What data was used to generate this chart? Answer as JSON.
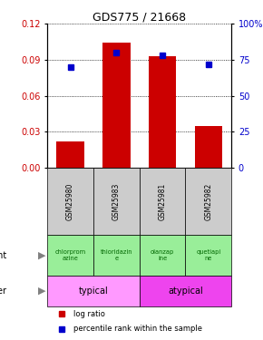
{
  "title": "GDS775 / 21668",
  "samples": [
    "GSM25980",
    "GSM25983",
    "GSM25981",
    "GSM25982"
  ],
  "log_ratio": [
    0.022,
    0.104,
    0.093,
    0.035
  ],
  "percentile": [
    70,
    80,
    78,
    72
  ],
  "ylim_left": [
    0,
    0.12
  ],
  "ylim_right": [
    0,
    100
  ],
  "yticks_left": [
    0,
    0.03,
    0.06,
    0.09,
    0.12
  ],
  "yticks_right": [
    0,
    25,
    50,
    75,
    100
  ],
  "bar_color": "#cc0000",
  "marker_color": "#0000cc",
  "agent_labels": [
    "chlorprom\nazine",
    "thioridazin\ne",
    "olanzap\nine",
    "quetiapi\nne"
  ],
  "agent_bg": "#99ee99",
  "typical_color": "#ff99ff",
  "atypical_color": "#ee44ee",
  "sample_bg": "#cccccc",
  "left_label_color": "#cc0000",
  "right_label_color": "#0000cc",
  "agent_text_color": "#006600",
  "legend_bar_label": "log ratio",
  "legend_marker_label": "percentile rank within the sample"
}
